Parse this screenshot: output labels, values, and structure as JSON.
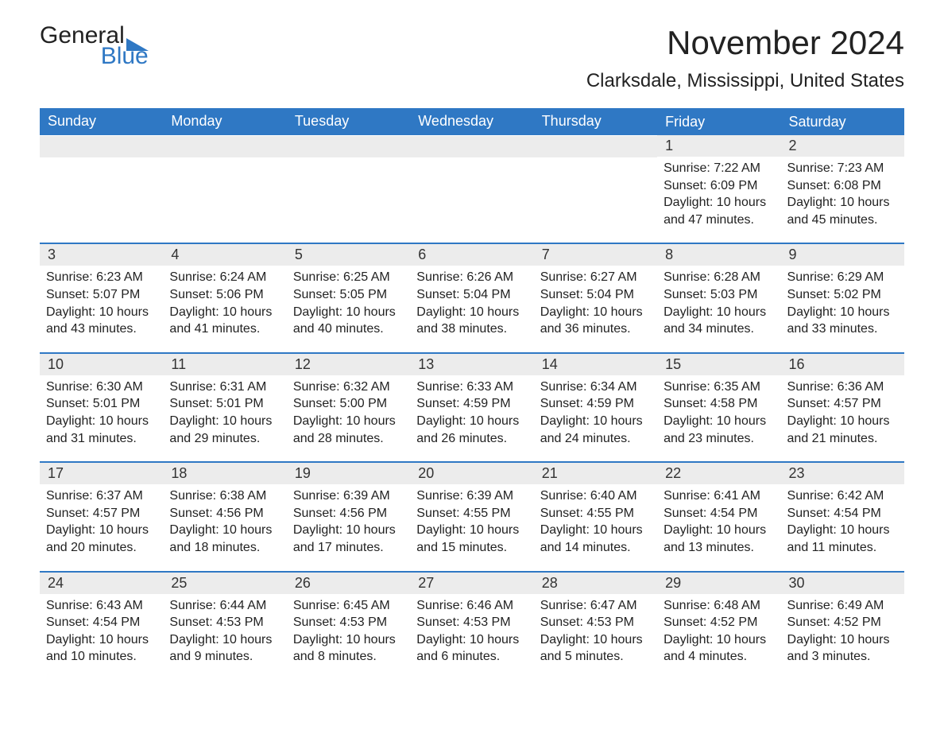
{
  "logo": {
    "word1": "General",
    "word2": "Blue",
    "triangle_color": "#2f78c4"
  },
  "title": "November 2024",
  "location": "Clarksdale, Mississippi, United States",
  "colors": {
    "header_bg": "#2f78c4",
    "header_text": "#ffffff",
    "daybar_bg": "#ececec",
    "rule": "#2f78c4",
    "text": "#222222",
    "background": "#ffffff"
  },
  "weekdays": [
    "Sunday",
    "Monday",
    "Tuesday",
    "Wednesday",
    "Thursday",
    "Friday",
    "Saturday"
  ],
  "weeks": [
    [
      null,
      null,
      null,
      null,
      null,
      {
        "day": "1",
        "sunrise": "Sunrise: 7:22 AM",
        "sunset": "Sunset: 6:09 PM",
        "daylight": "Daylight: 10 hours and 47 minutes."
      },
      {
        "day": "2",
        "sunrise": "Sunrise: 7:23 AM",
        "sunset": "Sunset: 6:08 PM",
        "daylight": "Daylight: 10 hours and 45 minutes."
      }
    ],
    [
      {
        "day": "3",
        "sunrise": "Sunrise: 6:23 AM",
        "sunset": "Sunset: 5:07 PM",
        "daylight": "Daylight: 10 hours and 43 minutes."
      },
      {
        "day": "4",
        "sunrise": "Sunrise: 6:24 AM",
        "sunset": "Sunset: 5:06 PM",
        "daylight": "Daylight: 10 hours and 41 minutes."
      },
      {
        "day": "5",
        "sunrise": "Sunrise: 6:25 AM",
        "sunset": "Sunset: 5:05 PM",
        "daylight": "Daylight: 10 hours and 40 minutes."
      },
      {
        "day": "6",
        "sunrise": "Sunrise: 6:26 AM",
        "sunset": "Sunset: 5:04 PM",
        "daylight": "Daylight: 10 hours and 38 minutes."
      },
      {
        "day": "7",
        "sunrise": "Sunrise: 6:27 AM",
        "sunset": "Sunset: 5:04 PM",
        "daylight": "Daylight: 10 hours and 36 minutes."
      },
      {
        "day": "8",
        "sunrise": "Sunrise: 6:28 AM",
        "sunset": "Sunset: 5:03 PM",
        "daylight": "Daylight: 10 hours and 34 minutes."
      },
      {
        "day": "9",
        "sunrise": "Sunrise: 6:29 AM",
        "sunset": "Sunset: 5:02 PM",
        "daylight": "Daylight: 10 hours and 33 minutes."
      }
    ],
    [
      {
        "day": "10",
        "sunrise": "Sunrise: 6:30 AM",
        "sunset": "Sunset: 5:01 PM",
        "daylight": "Daylight: 10 hours and 31 minutes."
      },
      {
        "day": "11",
        "sunrise": "Sunrise: 6:31 AM",
        "sunset": "Sunset: 5:01 PM",
        "daylight": "Daylight: 10 hours and 29 minutes."
      },
      {
        "day": "12",
        "sunrise": "Sunrise: 6:32 AM",
        "sunset": "Sunset: 5:00 PM",
        "daylight": "Daylight: 10 hours and 28 minutes."
      },
      {
        "day": "13",
        "sunrise": "Sunrise: 6:33 AM",
        "sunset": "Sunset: 4:59 PM",
        "daylight": "Daylight: 10 hours and 26 minutes."
      },
      {
        "day": "14",
        "sunrise": "Sunrise: 6:34 AM",
        "sunset": "Sunset: 4:59 PM",
        "daylight": "Daylight: 10 hours and 24 minutes."
      },
      {
        "day": "15",
        "sunrise": "Sunrise: 6:35 AM",
        "sunset": "Sunset: 4:58 PM",
        "daylight": "Daylight: 10 hours and 23 minutes."
      },
      {
        "day": "16",
        "sunrise": "Sunrise: 6:36 AM",
        "sunset": "Sunset: 4:57 PM",
        "daylight": "Daylight: 10 hours and 21 minutes."
      }
    ],
    [
      {
        "day": "17",
        "sunrise": "Sunrise: 6:37 AM",
        "sunset": "Sunset: 4:57 PM",
        "daylight": "Daylight: 10 hours and 20 minutes."
      },
      {
        "day": "18",
        "sunrise": "Sunrise: 6:38 AM",
        "sunset": "Sunset: 4:56 PM",
        "daylight": "Daylight: 10 hours and 18 minutes."
      },
      {
        "day": "19",
        "sunrise": "Sunrise: 6:39 AM",
        "sunset": "Sunset: 4:56 PM",
        "daylight": "Daylight: 10 hours and 17 minutes."
      },
      {
        "day": "20",
        "sunrise": "Sunrise: 6:39 AM",
        "sunset": "Sunset: 4:55 PM",
        "daylight": "Daylight: 10 hours and 15 minutes."
      },
      {
        "day": "21",
        "sunrise": "Sunrise: 6:40 AM",
        "sunset": "Sunset: 4:55 PM",
        "daylight": "Daylight: 10 hours and 14 minutes."
      },
      {
        "day": "22",
        "sunrise": "Sunrise: 6:41 AM",
        "sunset": "Sunset: 4:54 PM",
        "daylight": "Daylight: 10 hours and 13 minutes."
      },
      {
        "day": "23",
        "sunrise": "Sunrise: 6:42 AM",
        "sunset": "Sunset: 4:54 PM",
        "daylight": "Daylight: 10 hours and 11 minutes."
      }
    ],
    [
      {
        "day": "24",
        "sunrise": "Sunrise: 6:43 AM",
        "sunset": "Sunset: 4:54 PM",
        "daylight": "Daylight: 10 hours and 10 minutes."
      },
      {
        "day": "25",
        "sunrise": "Sunrise: 6:44 AM",
        "sunset": "Sunset: 4:53 PM",
        "daylight": "Daylight: 10 hours and 9 minutes."
      },
      {
        "day": "26",
        "sunrise": "Sunrise: 6:45 AM",
        "sunset": "Sunset: 4:53 PM",
        "daylight": "Daylight: 10 hours and 8 minutes."
      },
      {
        "day": "27",
        "sunrise": "Sunrise: 6:46 AM",
        "sunset": "Sunset: 4:53 PM",
        "daylight": "Daylight: 10 hours and 6 minutes."
      },
      {
        "day": "28",
        "sunrise": "Sunrise: 6:47 AM",
        "sunset": "Sunset: 4:53 PM",
        "daylight": "Daylight: 10 hours and 5 minutes."
      },
      {
        "day": "29",
        "sunrise": "Sunrise: 6:48 AM",
        "sunset": "Sunset: 4:52 PM",
        "daylight": "Daylight: 10 hours and 4 minutes."
      },
      {
        "day": "30",
        "sunrise": "Sunrise: 6:49 AM",
        "sunset": "Sunset: 4:52 PM",
        "daylight": "Daylight: 10 hours and 3 minutes."
      }
    ]
  ]
}
